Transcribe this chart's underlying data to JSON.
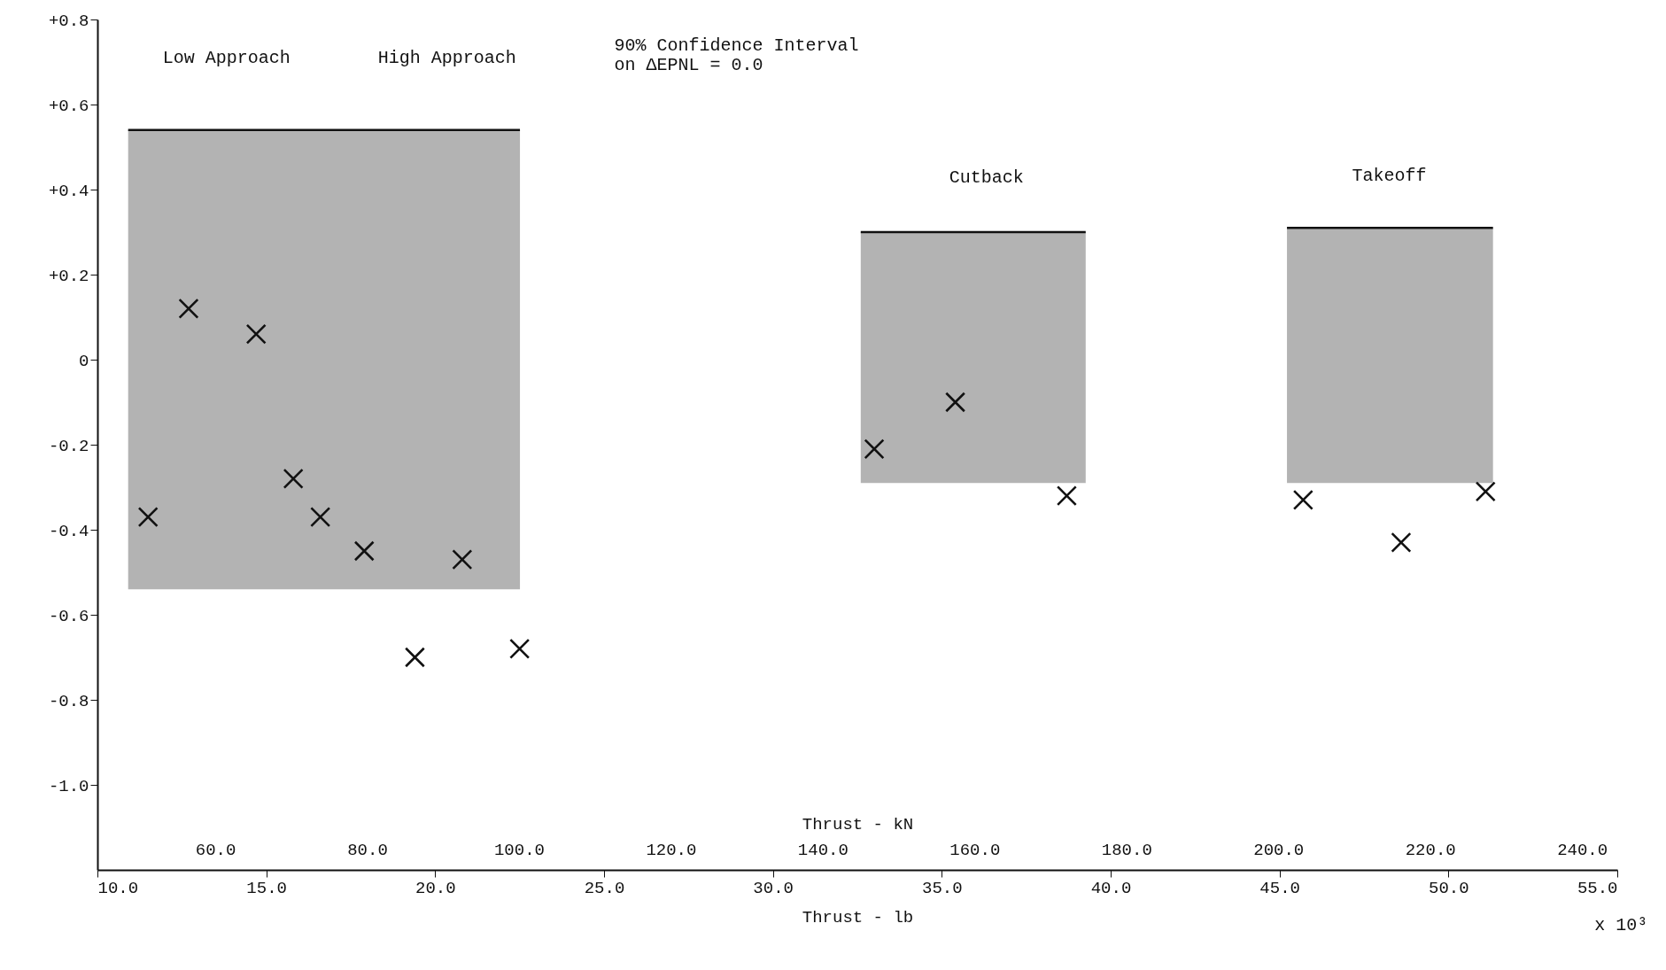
{
  "chart_data": {
    "type": "scatter",
    "xlabel": "Thrust - lb",
    "x2label": "Thrust - kN",
    "marker": "cross",
    "grid": false,
    "xlim": [
      10,
      55
    ],
    "xticks": [
      {
        "value": 10,
        "label": "10.0"
      },
      {
        "value": 15,
        "label": "15.0"
      },
      {
        "value": 20,
        "label": "20.0"
      },
      {
        "value": 25,
        "label": "25.0"
      },
      {
        "value": 30,
        "label": "30.0"
      },
      {
        "value": 35,
        "label": "35.0"
      },
      {
        "value": 40,
        "label": "40.0"
      },
      {
        "value": 45,
        "label": "45.0"
      },
      {
        "value": 50,
        "label": "50.0"
      },
      {
        "value": 55,
        "label": "55.0"
      }
    ],
    "x2lim": [
      44.48,
      244.65
    ],
    "x2ticks": [
      {
        "value": 60,
        "label": "60.0"
      },
      {
        "value": 80,
        "label": "80.0"
      },
      {
        "value": 100,
        "label": "100.0"
      },
      {
        "value": 120,
        "label": "120.0"
      },
      {
        "value": 140,
        "label": "140.0"
      },
      {
        "value": 160,
        "label": "160.0"
      },
      {
        "value": 180,
        "label": "180.0"
      },
      {
        "value": 200,
        "label": "200.0"
      },
      {
        "value": 220,
        "label": "220.0"
      },
      {
        "value": 240,
        "label": "240.0"
      }
    ],
    "ylim": [
      -1.2,
      0.8
    ],
    "yticks": [
      {
        "value": 0.8,
        "label": "+0.8"
      },
      {
        "value": 0.6,
        "label": "+0.6"
      },
      {
        "value": 0.4,
        "label": "+0.4"
      },
      {
        "value": 0.2,
        "label": "+0.2"
      },
      0,
      {
        "value": -0.2,
        "label": "-0.2"
      },
      {
        "value": -0.4,
        "label": "-0.4"
      },
      {
        "value": -0.6,
        "label": "-0.6"
      },
      {
        "value": -0.8,
        "label": "-0.8"
      },
      {
        "value": -1.0,
        "label": "-1.0"
      }
    ],
    "series": [
      {
        "type": "bar",
        "color": "#9a9a9a",
        "x": [
          16.71,
          35.93,
          48.27
        ],
        "base": [
          -0.54,
          -0.29,
          -0.29
        ],
        "values": [
          1.08,
          0.59,
          0.6
        ],
        "xerrors": [
          5.8,
          3.33,
          3.05
        ]
      },
      {
        "color": "#111111",
        "x": [
          11.5,
          12.7,
          14.7,
          15.8,
          16.6,
          17.9,
          19.4,
          20.8,
          22.5,
          33.0,
          35.4,
          38.7,
          45.7,
          48.6,
          51.1
        ],
        "values": [
          -0.37,
          0.12,
          0.06,
          -0.28,
          -0.37,
          -0.45,
          -0.7,
          -0.47,
          -0.68,
          -0.21,
          -0.1,
          -0.32,
          -0.33,
          -0.43,
          -0.31
        ]
      }
    ],
    "annotations": [
      "Low Approach",
      "High Approach",
      "Cutback",
      "Takeoff",
      "90% Confidence Interval\non ΔEPNL = 0.0",
      "x 10³"
    ]
  }
}
